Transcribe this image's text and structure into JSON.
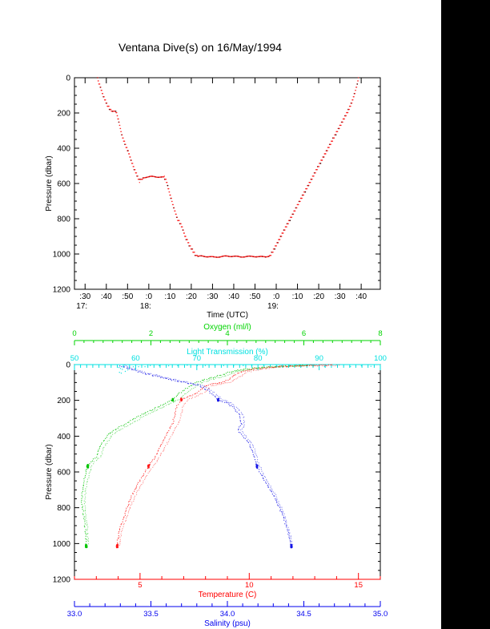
{
  "title": "Ventana Dive(s) on 16/May/1994",
  "page": {
    "background": "#ffffff",
    "right_panel_color": "#000000",
    "frame_color": "#000000",
    "text_color": "#000000"
  },
  "chart_data": [
    {
      "type": "line",
      "name": "dive-depth-profile",
      "xlabel": "Time (UTC)",
      "ylabel": "Pressure (dbar)",
      "x_minutes_after_1700": [
        25,
        169
      ],
      "x_major_ticks_min": [
        30,
        40,
        50,
        60,
        70,
        80,
        90,
        100,
        110,
        120,
        130,
        140,
        150,
        160
      ],
      "x_tick_labels": [
        ":30",
        ":40",
        ":50",
        ":0",
        ":10",
        ":20",
        ":30",
        ":40",
        ":50",
        ":0",
        ":10",
        ":20",
        ":30",
        ":40"
      ],
      "hour_labels": [
        {
          "t": 30,
          "label": "17:"
        },
        {
          "t": 60,
          "label": "18:"
        },
        {
          "t": 120,
          "label": "19:"
        }
      ],
      "ylim": [
        0,
        1200
      ],
      "y_major_step": 200,
      "y_minor_step": 50,
      "y_tick_labels": [
        "0",
        "200",
        "400",
        "600",
        "800",
        "1000",
        "1200"
      ],
      "series": [
        {
          "name": "pressure-vs-time",
          "color": "#ff1a1a",
          "marker_color": "#3d0000",
          "points_t_p": [
            [
              35.8,
              0
            ],
            [
              36.5,
              30
            ],
            [
              37.5,
              65
            ],
            [
              38.5,
              100
            ],
            [
              39.5,
              130
            ],
            [
              40.5,
              155
            ],
            [
              41.5,
              175
            ],
            [
              42.3,
              188
            ],
            [
              43,
              191
            ],
            [
              44.7,
              193
            ],
            [
              45.5,
              230
            ],
            [
              46.5,
              280
            ],
            [
              47.3,
              323
            ],
            [
              48.5,
              365
            ],
            [
              50.4,
              423
            ],
            [
              51.7,
              468
            ],
            [
              53,
              514
            ],
            [
              54.3,
              550
            ],
            [
              55.6,
              586
            ],
            [
              56.4,
              578
            ],
            [
              57.2,
              568
            ],
            [
              59,
              563
            ],
            [
              61,
              561
            ],
            [
              63,
              562
            ],
            [
              65,
              563
            ],
            [
              67.3,
              565
            ],
            [
              68,
              573
            ],
            [
              69,
              618
            ],
            [
              69.9,
              659
            ],
            [
              71,
              706
            ],
            [
              72.2,
              755
            ],
            [
              73.5,
              800
            ],
            [
              75.6,
              846
            ],
            [
              77,
              895
            ],
            [
              78.6,
              937
            ],
            [
              80,
              968
            ],
            [
              81.7,
              1000
            ],
            [
              83,
              1014
            ],
            [
              85,
              1012
            ],
            [
              88,
              1015
            ],
            [
              91,
              1018
            ],
            [
              94,
              1015
            ],
            [
              97,
              1012
            ],
            [
              100,
              1013
            ],
            [
              103,
              1016
            ],
            [
              106,
              1015
            ],
            [
              109,
              1013
            ],
            [
              112,
              1016
            ],
            [
              115,
              1015
            ],
            [
              117,
              1011
            ],
            [
              118.5,
              985
            ],
            [
              120,
              950
            ],
            [
              122,
              905
            ],
            [
              124,
              860
            ],
            [
              126,
              815
            ],
            [
              128,
              770
            ],
            [
              130,
              725
            ],
            [
              132,
              680
            ],
            [
              134,
              635
            ],
            [
              136,
              590
            ],
            [
              138,
              545
            ],
            [
              140,
              500
            ],
            [
              142,
              455
            ],
            [
              144,
              410
            ],
            [
              146,
              365
            ],
            [
              148,
              320
            ],
            [
              150,
              275
            ],
            [
              152,
              230
            ],
            [
              154,
              185
            ],
            [
              155.5,
              140
            ],
            [
              156.8,
              95
            ],
            [
              157.8,
              50
            ],
            [
              158.8,
              0
            ]
          ]
        }
      ]
    },
    {
      "type": "scatter",
      "name": "ctd-profiles",
      "ylabel": "Pressure (dbar)",
      "ylim": [
        0,
        1200
      ],
      "y_major_step": 200,
      "y_minor_step": 50,
      "y_tick_labels": [
        "0",
        "200",
        "400",
        "600",
        "800",
        "1000",
        "1200"
      ],
      "axes": {
        "oxygen": {
          "label": "Oxygen (ml/l)",
          "color": "#00d400",
          "lim": [
            0,
            8
          ],
          "major_ticks": [
            0,
            2,
            4,
            6,
            8
          ],
          "tick_labels": [
            "0",
            "2",
            "4",
            "6",
            "8"
          ],
          "minor_step": 0.25
        },
        "light": {
          "label": "Light Transmission (%)",
          "color": "#00e0e0",
          "lim": [
            50,
            100
          ],
          "major_ticks": [
            50,
            60,
            70,
            80,
            90,
            100
          ],
          "tick_labels": [
            "50",
            "60",
            "70",
            "80",
            "90",
            "100"
          ],
          "minor_step": 1
        },
        "temperature": {
          "label": "Temperature (C)",
          "color": "#ff0000",
          "lim": [
            2,
            16
          ],
          "major_ticks": [
            5,
            10,
            15
          ],
          "tick_labels": [
            "5",
            "10",
            "15"
          ],
          "minor_step": 1
        },
        "salinity": {
          "label": "Salinity (psu)",
          "color": "#0000ee",
          "lim": [
            33.0,
            35.0
          ],
          "major_ticks": [
            33.0,
            33.5,
            34.0,
            34.5,
            35.0
          ],
          "tick_labels": [
            "33.0",
            "33.5",
            "34.0",
            "34.5",
            "35.0"
          ],
          "minor_step": 0.1
        }
      },
      "pause_pressures_dbar": [
        196,
        568,
        1014
      ],
      "series": [
        {
          "name": "oxygen-profile",
          "axis": "oxygen",
          "color": "#00c400",
          "offset": 0.15,
          "points_v_p": [
            [
              6.1,
              4
            ],
            [
              5.6,
              8
            ],
            [
              5.2,
              12
            ],
            [
              4.8,
              18
            ],
            [
              4.4,
              28
            ],
            [
              4.1,
              40
            ],
            [
              3.8,
              60
            ],
            [
              3.5,
              80
            ],
            [
              3.2,
              98
            ],
            [
              2.95,
              130
            ],
            [
              2.75,
              160
            ],
            [
              2.6,
              193
            ],
            [
              2.3,
              225
            ],
            [
              2.0,
              255
            ],
            [
              1.76,
              280
            ],
            [
              1.6,
              300
            ],
            [
              1.35,
              330
            ],
            [
              1.1,
              360
            ],
            [
              0.88,
              390
            ],
            [
              0.75,
              430
            ],
            [
              0.65,
              470
            ],
            [
              0.57,
              515
            ],
            [
              0.42,
              545
            ],
            [
              0.33,
              573
            ],
            [
              0.27,
              630
            ],
            [
              0.21,
              690
            ],
            [
              0.19,
              760
            ],
            [
              0.23,
              830
            ],
            [
              0.27,
              890
            ],
            [
              0.3,
              950
            ],
            [
              0.31,
              1020
            ]
          ]
        },
        {
          "name": "temperature-profile",
          "axis": "temperature",
          "color": "#ff1a1a",
          "offset": 0.3,
          "points_v_p": [
            [
              13.8,
              3
            ],
            [
              12.5,
              6
            ],
            [
              11.5,
              10
            ],
            [
              10.8,
              16
            ],
            [
              10.2,
              25
            ],
            [
              9.6,
              42
            ],
            [
              9.2,
              70
            ],
            [
              8.9,
              95
            ],
            [
              8.3,
              110
            ],
            [
              7.93,
              121
            ],
            [
              7.64,
              157
            ],
            [
              7.2,
              180
            ],
            [
              6.9,
              196
            ],
            [
              6.7,
              230
            ],
            [
              6.6,
              278
            ],
            [
              6.5,
              327
            ],
            [
              6.21,
              394
            ],
            [
              5.92,
              461
            ],
            [
              5.63,
              528
            ],
            [
              5.37,
              573
            ],
            [
              5.05,
              635
            ],
            [
              4.75,
              700
            ],
            [
              4.5,
              770
            ],
            [
              4.3,
              840
            ],
            [
              4.12,
              905
            ],
            [
              4.0,
              965
            ],
            [
              3.95,
              1020
            ]
          ]
        },
        {
          "name": "salinity-profile",
          "axis": "salinity",
          "color": "#1414e6",
          "offset": 0.025,
          "points_v_p": [
            [
              33.3,
              6
            ],
            [
              33.33,
              15
            ],
            [
              33.37,
              28
            ],
            [
              33.45,
              48
            ],
            [
              33.55,
              68
            ],
            [
              33.66,
              90
            ],
            [
              33.75,
              105
            ],
            [
              33.82,
              120
            ],
            [
              33.87,
              145
            ],
            [
              33.91,
              170
            ],
            [
              33.94,
              196
            ],
            [
              34.0,
              215
            ],
            [
              34.05,
              250
            ],
            [
              34.08,
              282
            ],
            [
              34.09,
              336
            ],
            [
              34.07,
              367
            ],
            [
              34.1,
              400
            ],
            [
              34.14,
              439
            ],
            [
              34.17,
              500
            ],
            [
              34.19,
              560
            ],
            [
              34.22,
              615
            ],
            [
              34.26,
              672
            ],
            [
              34.3,
              730
            ],
            [
              34.34,
              800
            ],
            [
              34.37,
              860
            ],
            [
              34.39,
              920
            ],
            [
              34.41,
              975
            ],
            [
              34.42,
              1020
            ]
          ]
        }
      ],
      "light_scatter_v_p": [
        [
          57.2,
          16
        ],
        [
          57.5,
          23
        ],
        [
          57.8,
          31
        ],
        [
          58.2,
          38
        ],
        [
          58.6,
          27
        ],
        [
          59,
          19
        ],
        [
          59.5,
          13
        ],
        [
          57.4,
          45
        ],
        [
          57.6,
          52
        ],
        [
          60.5,
          10
        ],
        [
          61.5,
          14
        ],
        [
          62.5,
          8
        ],
        [
          64,
          11
        ],
        [
          65.5,
          7
        ],
        [
          67,
          10
        ],
        [
          68.5,
          6
        ],
        [
          70,
          9
        ],
        [
          71.5,
          7
        ],
        [
          73,
          10
        ],
        [
          74.5,
          6
        ],
        [
          76,
          8
        ],
        [
          77.5,
          5
        ],
        [
          79,
          8
        ],
        [
          81,
          6
        ],
        [
          83,
          9
        ],
        [
          85,
          5
        ],
        [
          87,
          8
        ],
        [
          89,
          6
        ],
        [
          91,
          9
        ],
        [
          93,
          5
        ],
        [
          95,
          7
        ],
        [
          97,
          6
        ],
        [
          98.5,
          8
        ]
      ]
    }
  ]
}
